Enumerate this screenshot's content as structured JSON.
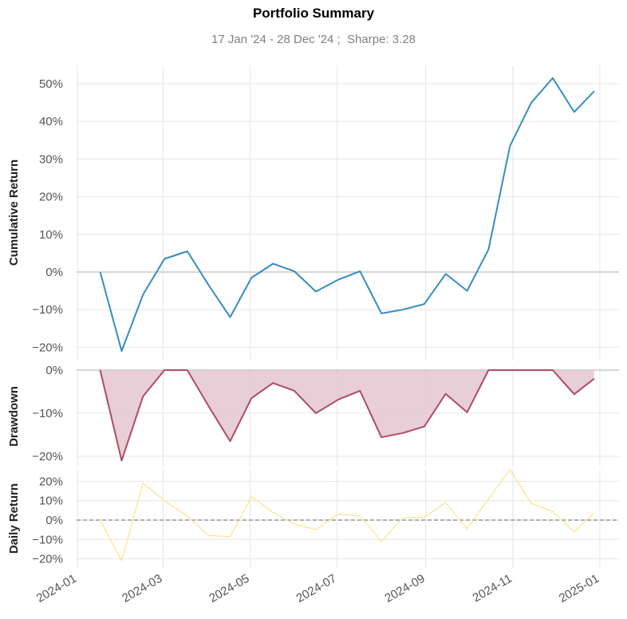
{
  "title": "Portfolio Summary",
  "subtitle": "17 Jan '24 - 28 Dec '24 ;  Sharpe: 3.28",
  "colors": {
    "cumulative": "#348dc1",
    "drawdown": "#af4b64",
    "drawdown_fill": "#e5c9d1",
    "daily": "#fedd78",
    "zero": "#808080"
  },
  "chart_data": {
    "type": "line",
    "x_ticks": [
      "2024-01",
      "2024-03",
      "2024-05",
      "2024-07",
      "2024-09",
      "2024-11",
      "2025-01"
    ],
    "dates": [
      "2024-01-17",
      "2024-02-01",
      "2024-02-16",
      "2024-03-02",
      "2024-03-18",
      "2024-04-02",
      "2024-04-17",
      "2024-05-02",
      "2024-05-17",
      "2024-06-01",
      "2024-06-16",
      "2024-07-02",
      "2024-07-17",
      "2024-08-01",
      "2024-08-16",
      "2024-08-31",
      "2024-09-15",
      "2024-09-30",
      "2024-10-15",
      "2024-10-30",
      "2024-11-14",
      "2024-11-29",
      "2024-12-14",
      "2024-12-28"
    ],
    "panels": [
      {
        "name": "cumulative",
        "ylabel": "Cumulative Return",
        "ylim": [
          -22,
          55
        ],
        "yticks": [
          50,
          40,
          30,
          20,
          10,
          0,
          -10,
          -20
        ],
        "ytick_labels": [
          "50%",
          "40%",
          "30%",
          "20%",
          "10%",
          "0%",
          "−10%",
          "−20%"
        ],
        "values": [
          0,
          -21,
          -6,
          3.5,
          5.5,
          -3.5,
          -12,
          -1.5,
          2.2,
          0.2,
          -5.2,
          -2,
          0.2,
          -11,
          -10,
          -8.5,
          -0.5,
          -5,
          6,
          33.5,
          45,
          51.5,
          42.5,
          48
        ]
      },
      {
        "name": "drawdown",
        "ylabel": "Drawdown",
        "ylim": [
          -22,
          0.5
        ],
        "yticks": [
          0,
          -10,
          -20
        ],
        "ytick_labels": [
          "0%",
          "−10%",
          "−20%"
        ],
        "values": [
          0,
          -21,
          -6.1,
          0,
          0,
          -8.4,
          -16.5,
          -6.5,
          -3,
          -4.8,
          -10,
          -6.8,
          -4.8,
          -15.6,
          -14.6,
          -13.1,
          -5.5,
          -9.8,
          0,
          0,
          0,
          0,
          -5.6,
          -2
        ]
      },
      {
        "name": "daily",
        "ylabel": "Daily Return",
        "ylim": [
          -21,
          26
        ],
        "yticks": [
          20,
          10,
          0,
          -10,
          -20
        ],
        "ytick_labels": [
          "20%",
          "10%",
          "0%",
          "−10%",
          "−20%"
        ],
        "values": [
          0,
          -21,
          19,
          10,
          2,
          -8,
          -8.5,
          12,
          4,
          -2,
          -5,
          3.2,
          2.2,
          -11,
          1.2,
          1.5,
          9,
          -4.5,
          11,
          26,
          8.6,
          4.5,
          -6,
          3.8
        ]
      }
    ]
  }
}
